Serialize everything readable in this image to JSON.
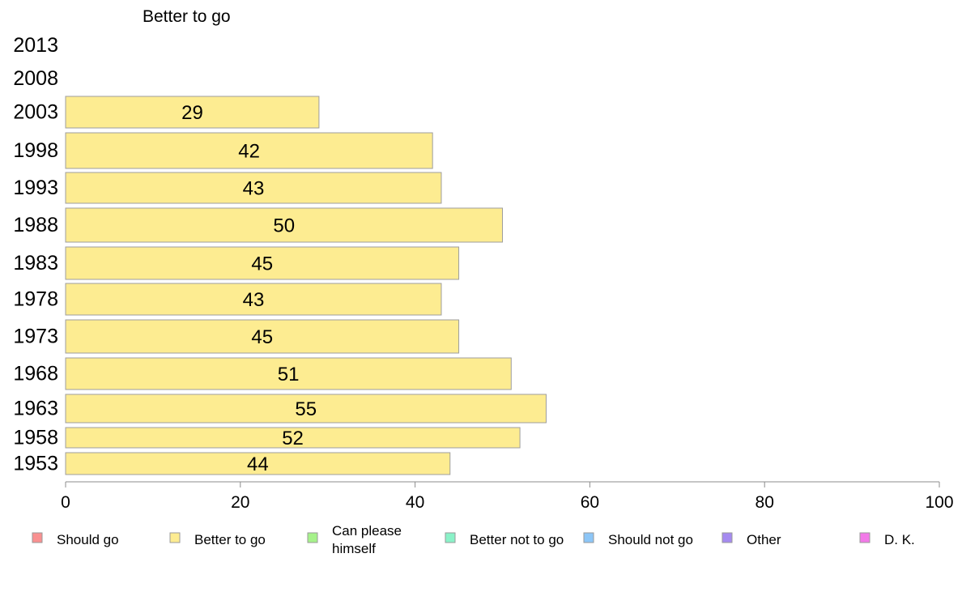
{
  "chart_data": {
    "type": "bar",
    "orientation": "horizontal",
    "panel_title": "Better to go",
    "categories": [
      "2013",
      "2008",
      "2003",
      "1998",
      "1993",
      "1988",
      "1983",
      "1978",
      "1973",
      "1968",
      "1963",
      "1958",
      "1953"
    ],
    "series": [
      {
        "name": "Better to go",
        "color": "#fdec91",
        "values": [
          null,
          null,
          29,
          42,
          43,
          50,
          45,
          43,
          45,
          51,
          55,
          52,
          44
        ]
      }
    ],
    "xlim": [
      0,
      100
    ],
    "x_ticks": [
      "0",
      "20",
      "40",
      "60",
      "80",
      "100"
    ],
    "grid": false,
    "legend_position": "bottom",
    "legend": [
      {
        "label": "Should go",
        "color": "#f99090"
      },
      {
        "label": "Better to go",
        "color": "#fdec91"
      },
      {
        "label": "Can please himself",
        "color": "#a6f28a"
      },
      {
        "label": "Better not to go",
        "color": "#8af2c8"
      },
      {
        "label": "Should not go",
        "color": "#8cc6f7"
      },
      {
        "label": "Other",
        "color": "#a58af0"
      },
      {
        "label": "D. K.",
        "color": "#f27ae8"
      }
    ],
    "bar_border_color": "#9e9e9e",
    "axis_color": "#8c8c8c"
  }
}
